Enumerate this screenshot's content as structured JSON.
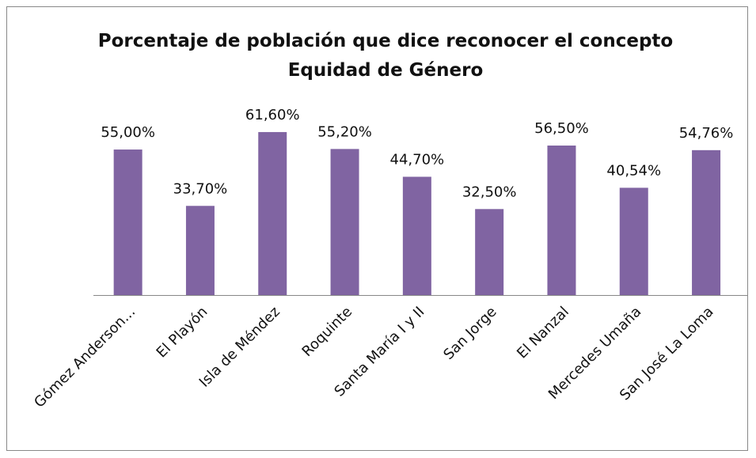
{
  "chart_data": {
    "type": "bar",
    "title": "Porcentaje de población que  dice reconocer el concepto Equidad de Género",
    "categories": [
      "Gómez Anderson...",
      "El Playón",
      "Isla de Méndez",
      "Roquinte",
      "Santa María I y II",
      "San Jorge",
      "El Nanzal",
      "Mercedes Umaña",
      "San José La Loma"
    ],
    "values": [
      55,
      33.7,
      61.6,
      55.2,
      44.7,
      32.5,
      56.5,
      40.54,
      54.76
    ],
    "value_labels": [
      "55,00%",
      "33,70%",
      "61,60%",
      "55,20%",
      "44,70%",
      "32,50%",
      "56,50%",
      "40,54%",
      "54,76%"
    ],
    "color": "#8064a2"
  }
}
